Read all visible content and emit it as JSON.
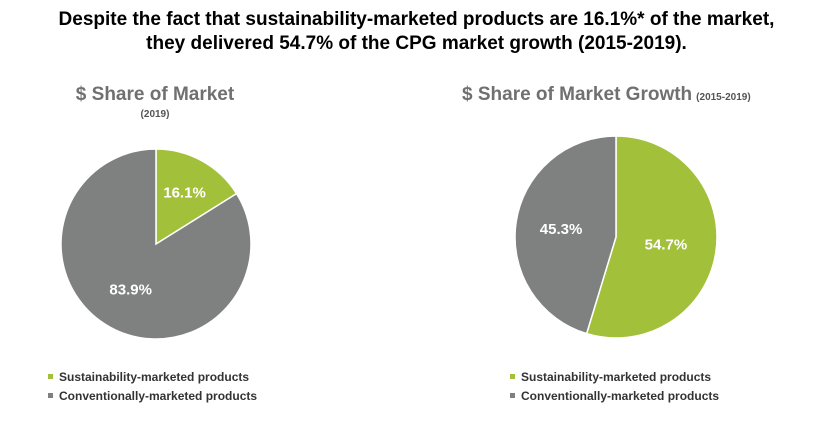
{
  "headline": {
    "line1": "Despite the fact that sustainability-marketed products are 16.1%* of the market,",
    "line2": "they delivered 54.7% of the CPG market growth (2015-2019)."
  },
  "colors": {
    "sustainable": "#a3c03a",
    "conventional": "#7f8080"
  },
  "chart_data": [
    {
      "type": "pie",
      "title": "$ Share of Market",
      "subtitle": "(2019)",
      "slices": [
        {
          "name": "Sustainability-marketed products",
          "value": 16.1,
          "label": "16.1%"
        },
        {
          "name": "Conventionally-marketed products",
          "value": 83.9,
          "label": "83.9%"
        }
      ],
      "legend": [
        "Sustainability-marketed products",
        "Conventionally-marketed products"
      ],
      "legend_position": "bottom-left"
    },
    {
      "type": "pie",
      "title": "$ Share of Market Growth",
      "subtitle": "(2015-2019)",
      "slices": [
        {
          "name": "Sustainability-marketed products",
          "value": 54.7,
          "label": "54.7%"
        },
        {
          "name": "Conventionally-marketed products",
          "value": 45.3,
          "label": "45.3%"
        }
      ],
      "legend": [
        "Sustainability-marketed products",
        "Conventionally-marketed products"
      ],
      "legend_position": "bottom-left"
    }
  ]
}
